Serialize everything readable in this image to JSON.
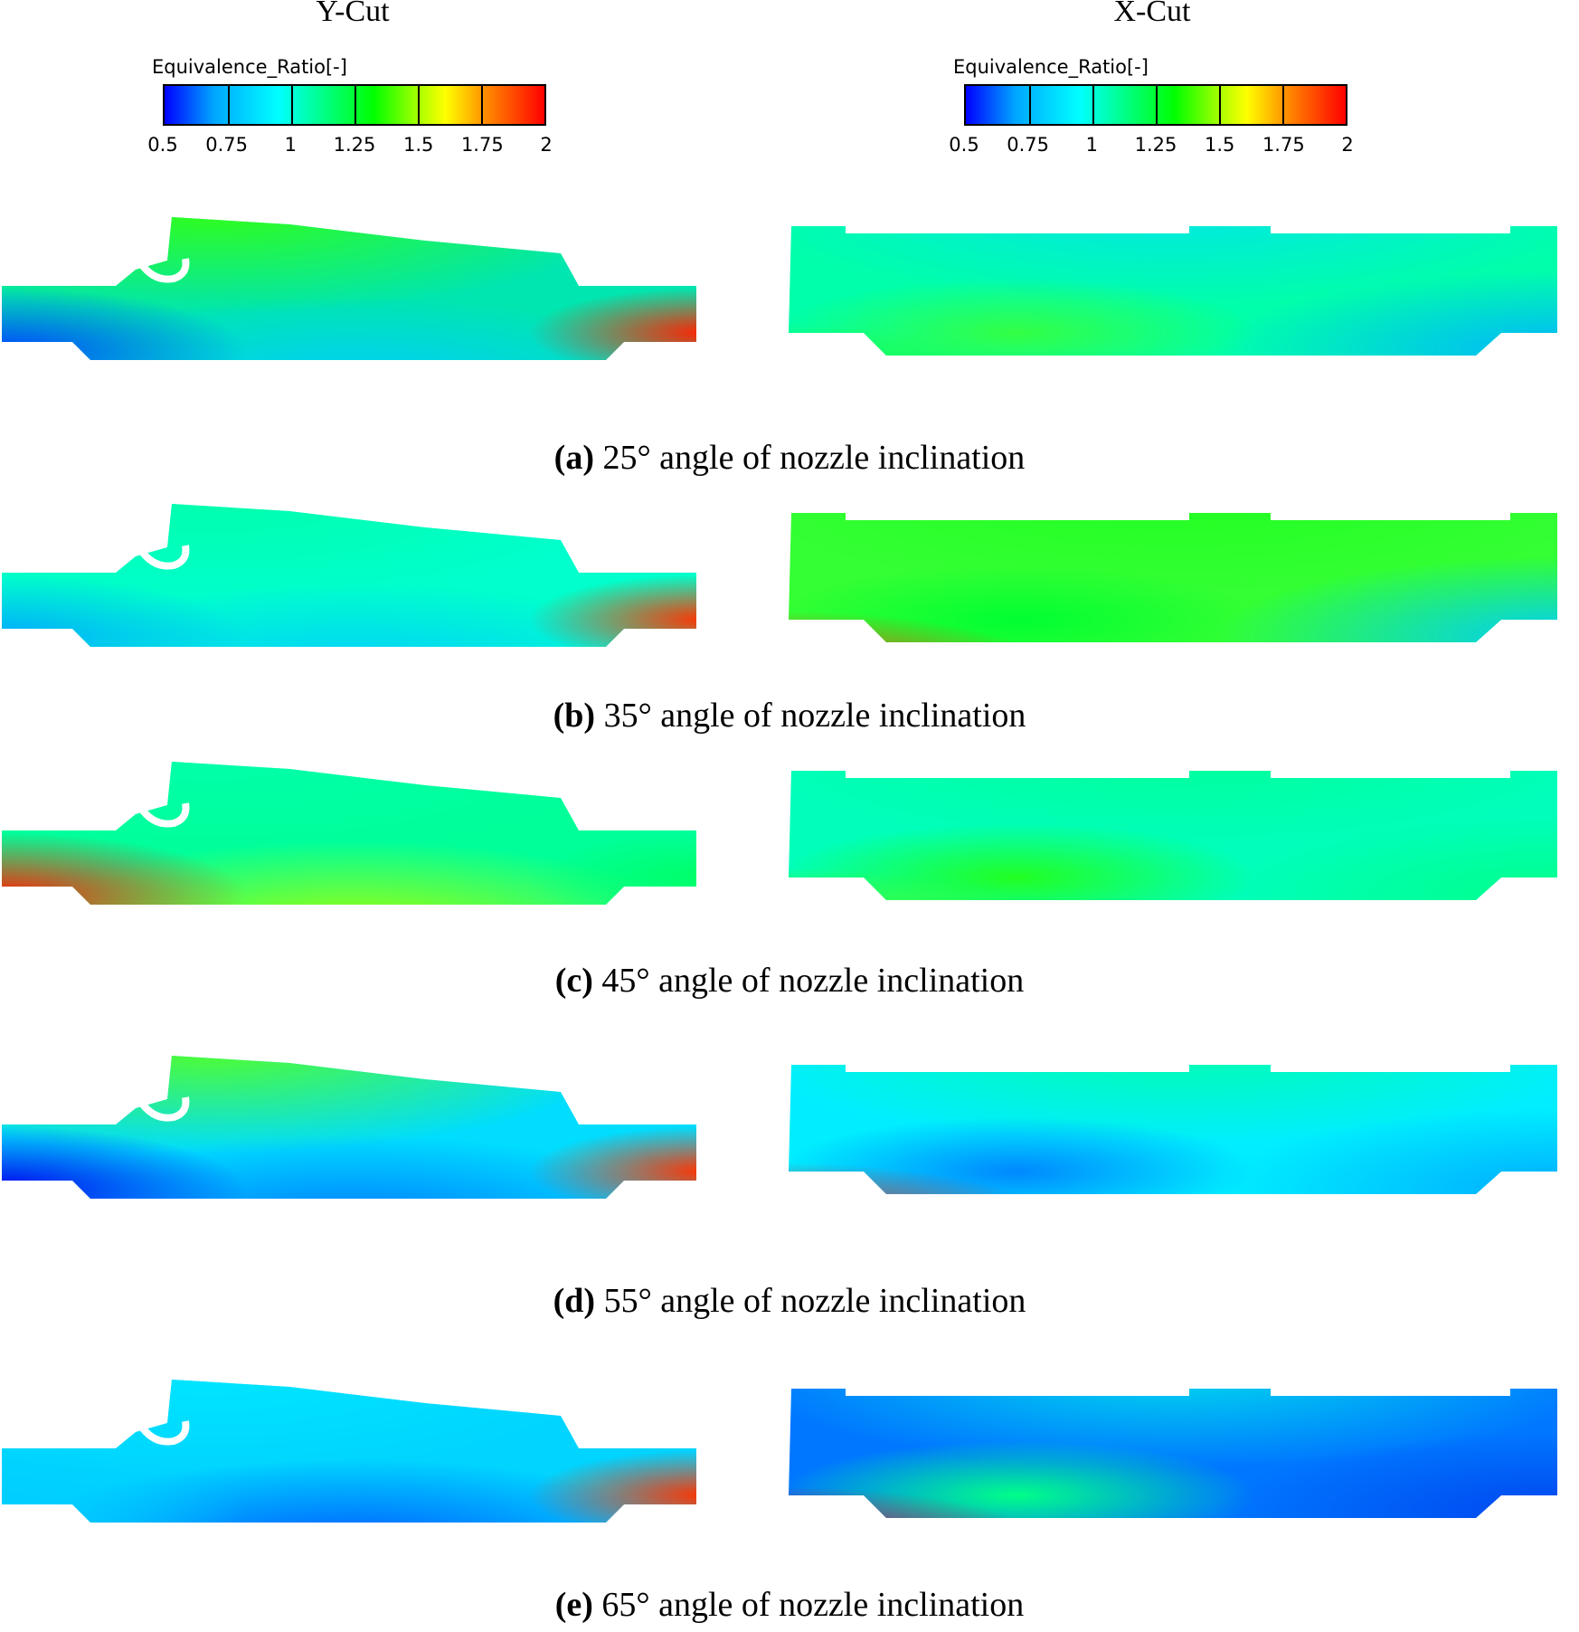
{
  "columns": {
    "left_title": "Y-Cut",
    "right_title": "X-Cut"
  },
  "legend": {
    "title": "Equivalence_Ratio[-]",
    "ticks": [
      "0.5",
      "0.75",
      "1",
      "1.25",
      "1.5",
      "1.75",
      "2"
    ],
    "range": [
      0.5,
      2
    ],
    "colors": [
      "#0000ff",
      "#00a6ff",
      "#00ffff",
      "#00ff66",
      "#00ff00",
      "#aaff00",
      "#ffff00",
      "#ff8800",
      "#ff0000"
    ]
  },
  "panels": [
    {
      "label": "(a)",
      "caption": "25° angle of nozzle inclination",
      "ycut_colors": {
        "base": "#00e6b0",
        "top": "#33ff11",
        "left": "#0044ff",
        "right": "#ff2200",
        "bottom": "#00ccff"
      },
      "xcut_colors": {
        "base": "#00ffaa",
        "top": "#00e6e6",
        "bl": "#22ff22",
        "br": "#00b3ff",
        "mid": "#33ff44"
      }
    },
    {
      "label": "(b)",
      "caption": "35° angle of nozzle inclination",
      "ycut_colors": {
        "base": "#00ffcc",
        "top": "#00ffaa",
        "left": "#00aaff",
        "right": "#ff3300",
        "bottom": "#00ccff"
      },
      "xcut_colors": {
        "base": "#33ff33",
        "top": "#22ff22",
        "bl": "#ff3300",
        "br": "#00ccff",
        "mid": "#00ff33"
      }
    },
    {
      "label": "(c)",
      "caption": "45° angle of nozzle inclination",
      "ycut_colors": {
        "base": "#00ff99",
        "top": "#00ffaa",
        "left": "#ff2200",
        "right": "#00ff66",
        "bottom": "#aaff00"
      },
      "xcut_colors": {
        "base": "#00ffbb",
        "top": "#00ff99",
        "bl": "#66ff00",
        "br": "#00ff88",
        "mid": "#22ff22"
      }
    },
    {
      "label": "(d)",
      "caption": "55° angle of nozzle inclination",
      "ycut_colors": {
        "base": "#00ddff",
        "top": "#55ff22",
        "left": "#0000ee",
        "right": "#ff3300",
        "bottom": "#0077ff"
      },
      "xcut_colors": {
        "base": "#00eeff",
        "top": "#00ffaa",
        "bl": "#ff0000",
        "br": "#00aaff",
        "mid": "#0088ff"
      }
    },
    {
      "label": "(e)",
      "caption": "65° angle of nozzle inclination",
      "ycut_colors": {
        "base": "#00d4ff",
        "top": "#00e6ff",
        "left": "#00ccff",
        "right": "#ff3300",
        "bottom": "#0055ff"
      },
      "xcut_colors": {
        "base": "#0077ff",
        "top": "#00ddee",
        "bl": "#ff0000",
        "br": "#0044ee",
        "mid": "#00ff88"
      }
    }
  ]
}
